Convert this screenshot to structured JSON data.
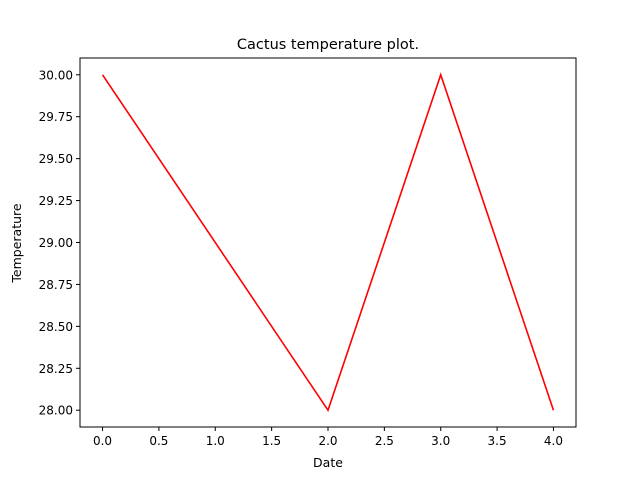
{
  "chart_data": {
    "type": "line",
    "title": "Cactus temperature plot.",
    "xlabel": "Date",
    "ylabel": "Temperature",
    "x": [
      0,
      2,
      3,
      4
    ],
    "series": [
      {
        "values": [
          30.0,
          28.0,
          30.0,
          28.0
        ],
        "color": "#ff0000"
      }
    ],
    "xlim": [
      -0.2,
      4.2
    ],
    "ylim": [
      27.9,
      30.1
    ],
    "xticks": [
      0.0,
      0.5,
      1.0,
      1.5,
      2.0,
      2.5,
      3.0,
      3.5,
      4.0
    ],
    "xtick_labels": [
      "0.0",
      "0.5",
      "1.0",
      "1.5",
      "2.0",
      "2.5",
      "3.0",
      "3.5",
      "4.0"
    ],
    "yticks": [
      28.0,
      28.25,
      28.5,
      28.75,
      29.0,
      29.25,
      29.5,
      29.75,
      30.0
    ],
    "ytick_labels": [
      "28.00",
      "28.25",
      "28.50",
      "28.75",
      "29.00",
      "29.25",
      "29.50",
      "29.75",
      "30.00"
    ],
    "grid": false,
    "legend": false
  }
}
